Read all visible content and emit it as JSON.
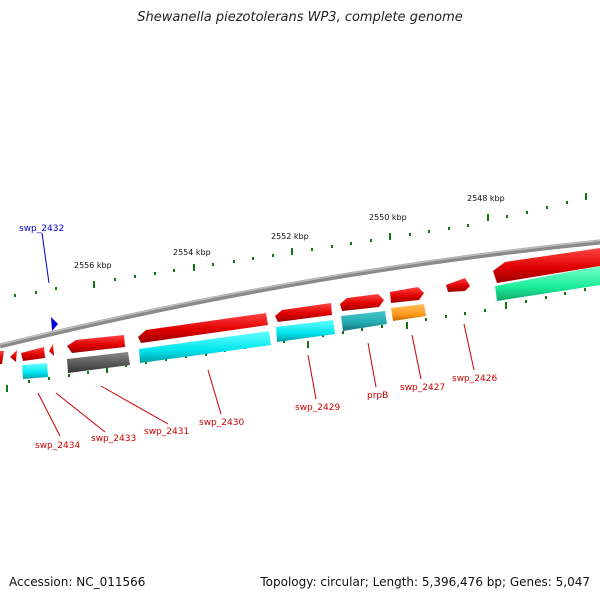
{
  "title": "Shewanella piezotolerans WP3, complete genome",
  "footer": {
    "accession": "Accession: NC_011566",
    "summary": "Topology: circular; Length: 5,396,476 bp; Genes: 5,047"
  },
  "ticks": [
    "2548 kbp",
    "2550 kbp",
    "2552 kbp",
    "2554 kbp",
    "2556 kbp"
  ],
  "genes": [
    "swp_2432",
    "swp_2434",
    "swp_2433",
    "swp_2431",
    "swp_2430",
    "swp_2429",
    "prpB",
    "swp_2427",
    "swp_2426"
  ],
  "colors": {
    "cds_red": "#ee0000",
    "cyan": "#00e5ee",
    "teal": "#22aab0",
    "gray": "#555555",
    "orange": "#ff9a1a",
    "green": "#1aee99",
    "tick_green": "#117711",
    "label_red": "#cc0000",
    "label_blue": "#0000cc"
  }
}
